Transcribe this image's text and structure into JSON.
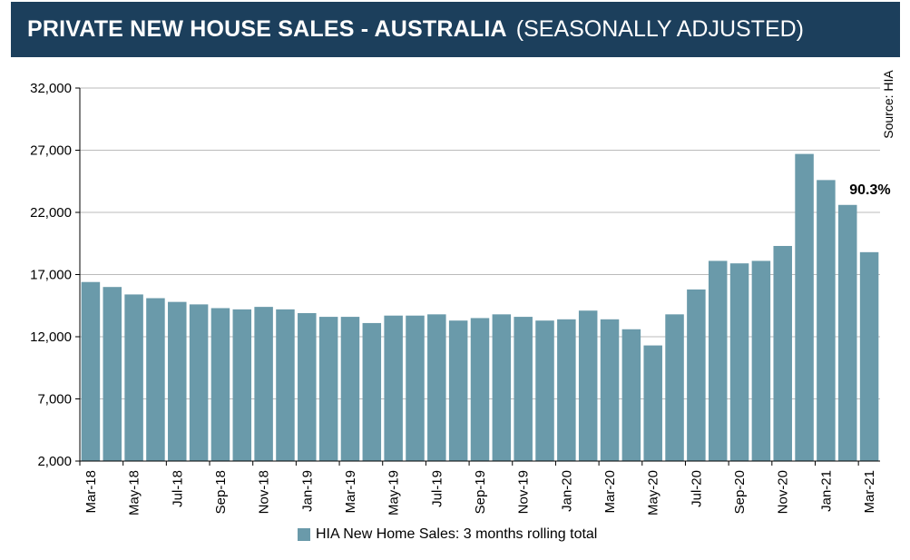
{
  "header": {
    "title": "PRIVATE NEW HOUSE SALES -  AUSTRALIA",
    "subtitle": "(SEASONALLY ADJUSTED)"
  },
  "source_label": "Source: HIA",
  "colors": {
    "header_bg": "#1c3f5c",
    "bar": "#6a9aaa",
    "grid": "#bbbbbb"
  },
  "chart_data": {
    "type": "bar",
    "title": "PRIVATE NEW HOUSE SALES - AUSTRALIA (SEASONALLY ADJUSTED)",
    "xlabel": "",
    "ylabel": "",
    "ylim": [
      2000,
      32000
    ],
    "yticks": [
      2000,
      7000,
      12000,
      17000,
      22000,
      27000,
      32000
    ],
    "ytick_labels": [
      "2,000",
      "7,000",
      "12,000",
      "17,000",
      "22,000",
      "27,000",
      "32,000"
    ],
    "categories": [
      "Mar-18",
      "Apr-18",
      "May-18",
      "Jun-18",
      "Jul-18",
      "Aug-18",
      "Sep-18",
      "Oct-18",
      "Nov-18",
      "Dec-18",
      "Jan-19",
      "Feb-19",
      "Mar-19",
      "Apr-19",
      "May-19",
      "Jun-19",
      "Jul-19",
      "Aug-19",
      "Sep-19",
      "Oct-19",
      "Nov-19",
      "Dec-19",
      "Jan-20",
      "Feb-20",
      "Mar-20",
      "Apr-20",
      "May-20",
      "Jun-20",
      "Jul-20",
      "Aug-20",
      "Sep-20",
      "Oct-20",
      "Nov-20",
      "Dec-20",
      "Jan-21",
      "Feb-21",
      "Mar-21"
    ],
    "xtick_labels": [
      "Mar-18",
      "May-18",
      "Jul-18",
      "Sep-18",
      "Nov-18",
      "Jan-19",
      "Mar-19",
      "May-19",
      "Jul-19",
      "Sep-19",
      "Nov-19",
      "Jan-20",
      "Mar-20",
      "May-20",
      "Jul-20",
      "Sep-20",
      "Nov-20",
      "Jan-21",
      "Mar-21"
    ],
    "series": [
      {
        "name": "HIA New Home Sales: 3 months rolling total",
        "values": [
          16400,
          16000,
          15400,
          15100,
          14800,
          14600,
          14300,
          14200,
          14400,
          14200,
          13900,
          13600,
          13600,
          13100,
          13700,
          13700,
          13800,
          13300,
          13500,
          13800,
          13600,
          13300,
          13400,
          14100,
          13400,
          12600,
          11300,
          13800,
          15800,
          18100,
          17900,
          18100,
          19300,
          26700,
          24600,
          22600,
          18800
        ]
      }
    ],
    "annotation": {
      "text": "90.3%",
      "category": "Feb-21"
    },
    "legend": "bottom-center"
  }
}
